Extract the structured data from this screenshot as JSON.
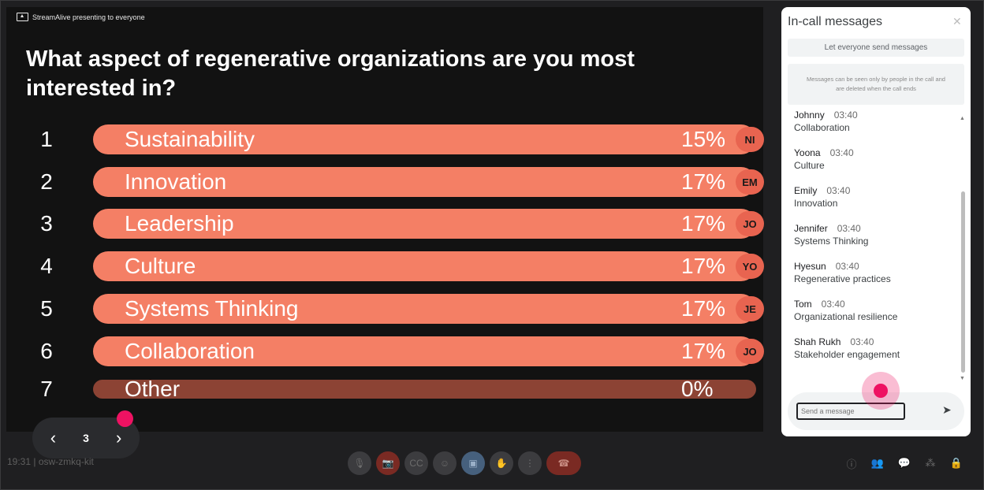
{
  "stage": {
    "presenting_label": "StreamAlive presenting to everyone",
    "question": "What aspect of regenerative organizations are you most interested in?",
    "options": [
      {
        "number": "1",
        "label": "Sustainability",
        "badge": "NI",
        "percent": "15%"
      },
      {
        "number": "2",
        "label": "Innovation",
        "badge": "EM",
        "percent": "17%"
      },
      {
        "number": "3",
        "label": "Leadership",
        "badge": "JO",
        "percent": "17%"
      },
      {
        "number": "4",
        "label": "Culture",
        "badge": "YO",
        "percent": "17%"
      },
      {
        "number": "5",
        "label": "Systems Thinking",
        "badge": "JE",
        "percent": "17%"
      },
      {
        "number": "6",
        "label": "Collaboration",
        "badge": "JO",
        "percent": "17%"
      },
      {
        "number": "7",
        "label": "Other",
        "badge": "",
        "percent": "0%"
      }
    ],
    "pager": {
      "prev": "‹",
      "page": "3",
      "next": "›"
    }
  },
  "meeting": {
    "info": "19:31 | osw-zmkq-kit"
  },
  "controls": {
    "mic": "🎙",
    "camera": "📷",
    "captions": "CC",
    "emoji": "☺",
    "present": "▣",
    "hand": "✋",
    "more": "⋮",
    "hangup": "☎"
  },
  "right_controls": {
    "info": "ⓘ",
    "people": "👥",
    "chat": "💬",
    "activities": "⁂",
    "host": "🔒"
  },
  "chat": {
    "title": "In-call messages",
    "close": "✕",
    "allow_button": "Let everyone send messages",
    "notice": "Messages can be seen only by people in the call and are deleted when the call ends",
    "messages": [
      {
        "name": "Johnny",
        "time": "03:40",
        "text": "Collaboration"
      },
      {
        "name": "Yoona",
        "time": "03:40",
        "text": "Culture"
      },
      {
        "name": "Emily",
        "time": "03:40",
        "text": "Innovation"
      },
      {
        "name": "Jennifer",
        "time": "03:40",
        "text": "Systems Thinking"
      },
      {
        "name": "Hyesun",
        "time": "03:40",
        "text": "Regenerative practices"
      },
      {
        "name": "Tom",
        "time": "03:40",
        "text": "Organizational resilience"
      },
      {
        "name": "Shah Rukh",
        "time": "03:40",
        "text": "Stakeholder engagement"
      }
    ],
    "scroll_up": "▲",
    "scroll_down": "▼",
    "input_placeholder": "Send a message",
    "send_icon": "➤"
  }
}
